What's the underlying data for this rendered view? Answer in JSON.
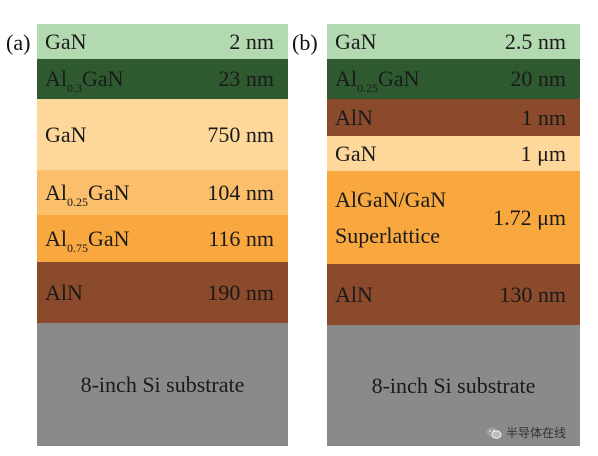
{
  "panels": [
    {
      "label": "(a)",
      "layers": [
        {
          "name": "GaN",
          "sub": "",
          "suffix": "",
          "thickness": "2 nm",
          "color": "#b3d9b0"
        },
        {
          "name": "Al",
          "sub": "0.3",
          "suffix": "GaN",
          "thickness": "23 nm",
          "color": "#2f5a30"
        },
        {
          "name": "GaN",
          "sub": "",
          "suffix": "",
          "thickness": "750 nm",
          "color": "#fdd89a"
        },
        {
          "name": "Al",
          "sub": "0.25",
          "suffix": "GaN",
          "thickness": "104 nm",
          "color": "#fbbf6c"
        },
        {
          "name": "Al",
          "sub": "0.75",
          "suffix": "GaN",
          "thickness": "116 nm",
          "color": "#f9a840"
        },
        {
          "name": "AlN",
          "sub": "",
          "suffix": "",
          "thickness": "190 nm",
          "color": "#8b4a2b"
        },
        {
          "name": "8-inch Si substrate",
          "sub": "",
          "suffix": "",
          "thickness": "",
          "color": "#8a8a8a"
        }
      ]
    },
    {
      "label": "(b)",
      "layers": [
        {
          "name": "GaN",
          "sub": "",
          "suffix": "",
          "thickness": "2.5 nm",
          "color": "#b3d9b0"
        },
        {
          "name": "Al",
          "sub": "0.25",
          "suffix": "GaN",
          "thickness": "20 nm",
          "color": "#2f5a30"
        },
        {
          "name": "AlN",
          "sub": "",
          "suffix": "",
          "thickness": "1 nm",
          "color": "#8b4a2b"
        },
        {
          "name": "GaN",
          "sub": "",
          "suffix": "",
          "thickness": "1 μm",
          "color": "#fdd89a"
        },
        {
          "name": "AlGaN/GaN",
          "name2": "Superlattice",
          "sub": "",
          "suffix": "",
          "thickness": "1.72 μm",
          "color": "#f9a840"
        },
        {
          "name": "AlN",
          "sub": "",
          "suffix": "",
          "thickness": "130 nm",
          "color": "#8b4a2b"
        },
        {
          "name": "8-inch Si substrate",
          "sub": "",
          "suffix": "",
          "thickness": "",
          "color": "#8a8a8a"
        }
      ]
    }
  ],
  "watermark": {
    "text": "半导体在线",
    "icon": "wechat-icon"
  }
}
